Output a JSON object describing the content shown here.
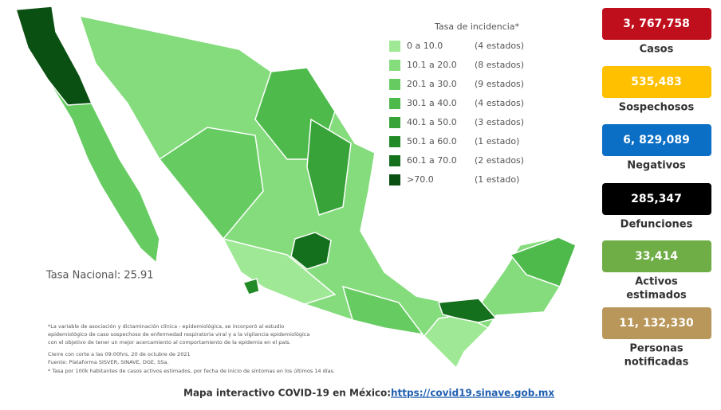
{
  "legend": {
    "title": "Tasa de incidencia*",
    "items": [
      {
        "range": "0 a 10.0",
        "count": "(4 estados)",
        "color": "#9fe895"
      },
      {
        "range": "10.1 a 20.0",
        "count": "(8 estados)",
        "color": "#84dc7c"
      },
      {
        "range": "20.1 a 30.0",
        "count": "(9 estados)",
        "color": "#66cc62"
      },
      {
        "range": "30.1 a 40.0",
        "count": "(4 estados)",
        "color": "#4dba4b"
      },
      {
        "range": "40.1 a 50.0",
        "count": "(3 estados)",
        "color": "#37a338"
      },
      {
        "range": "50.1 a 60.0",
        "count": "(1 estado)",
        "color": "#238a28"
      },
      {
        "range": "60.1 a 70.0",
        "count": "(2 estados)",
        "color": "#14701c"
      },
      {
        "range": ">70.0",
        "count": "(1 estado)",
        "color": "#0b5013"
      }
    ]
  },
  "national": "Tasa Nacional: 25.91",
  "notes": [
    "*La variable de asociación y dictaminación clínica - epidemiológica, se incorporó al estudio",
    "epidemiológico de caso sospechoso de enfermedad respiratoria viral y a la vigilancia epidemiológica",
    "con el objetivo de tener un mejor acercamiento al comportamiento de la epidemia en el país.",
    "Cierre con corte a las 09:00hrs, 20 de octubre de 2021",
    "Fuente: Plataforma SISVER, SINAVE, DGE, SSa.",
    "* Tasa por 100k habitantes de casos activos estimados, por fecha de inicio de síntomas en los últimos 14 días."
  ],
  "stats": [
    {
      "value": "3, 767,758",
      "label": [
        "Casos"
      ],
      "color": "#c00f1c",
      "text_color": "#ffffff"
    },
    {
      "value": "535,483",
      "label": [
        "Sospechosos"
      ],
      "color": "#ffc000",
      "text_color": "#ffffff"
    },
    {
      "value": "6, 829,089",
      "label": [
        "Negativos"
      ],
      "color": "#0b6fc6",
      "text_color": "#ffffff"
    },
    {
      "value": "285,347",
      "label": [
        "Defunciones"
      ],
      "color": "#000000",
      "text_color": "#ffffff"
    },
    {
      "value": "33,414",
      "label": [
        "Activos",
        "estimados"
      ],
      "color": "#6fad47",
      "text_color": "#ffffff"
    },
    {
      "value": "11, 132,330",
      "label": [
        "Personas",
        "notificadas"
      ],
      "color": "#b9975b",
      "text_color": "#ffffff"
    }
  ],
  "footer": {
    "text": "Mapa interactivo COVID-19 en México:",
    "link": "https://covid19.sinave.gob.mx"
  }
}
